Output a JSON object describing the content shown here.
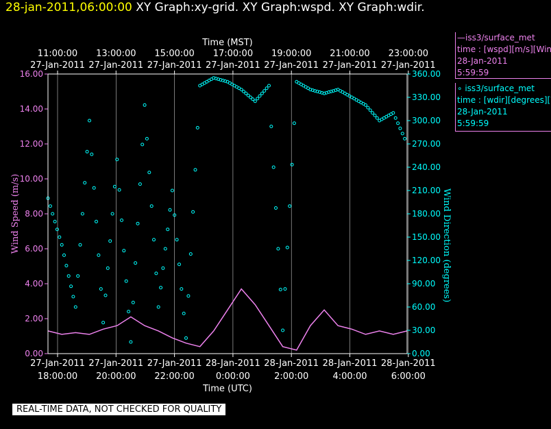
{
  "header": {
    "timestamp": "28-jan-2011,06:00:00",
    "graph_titles": "XY Graph:xy-grid.  XY Graph:wspd.  XY Graph:wdir."
  },
  "legend": {
    "wspd": {
      "name": "—iss3/surface_met",
      "var": "time : [wspd][m/s][Wind",
      "date": "28-Jan-2011",
      "time": "5:59:59",
      "color": "#ee82ee"
    },
    "wdir": {
      "name": "∘ iss3/surface_met",
      "var": "time : [wdir][degrees][W",
      "date": "28-Jan-2011",
      "time": "5:59:59",
      "color": "#00ffff"
    }
  },
  "notice": "REAL-TIME DATA, NOT CHECKED FOR QUALITY",
  "chart_data": {
    "type": "line",
    "top_axis_title": "Time (MST)",
    "bottom_axis_title": "Time (UTC)",
    "top_ticks": [
      {
        "time": "11:00:00",
        "date": "27-Jan-2011"
      },
      {
        "time": "13:00:00",
        "date": "27-Jan-2011"
      },
      {
        "time": "15:00:00",
        "date": "27-Jan-2011"
      },
      {
        "time": "17:00:00",
        "date": "27-Jan-2011"
      },
      {
        "time": "19:00:00",
        "date": "27-Jan-2011"
      },
      {
        "time": "21:00:00",
        "date": "27-Jan-2011"
      },
      {
        "time": "23:00:00",
        "date": "27-Jan-2011"
      }
    ],
    "bottom_ticks": [
      {
        "date": "27-Jan-2011",
        "time": "18:00:00"
      },
      {
        "date": "27-Jan-2011",
        "time": "20:00:00"
      },
      {
        "date": "27-Jan-2011",
        "time": "22:00:00"
      },
      {
        "date": "28-Jan-2011",
        "time": "0:00:00"
      },
      {
        "date": "28-Jan-2011",
        "time": "2:00:00"
      },
      {
        "date": "28-Jan-2011",
        "time": "4:00:00"
      },
      {
        "date": "28-Jan-2011",
        "time": "6:00:00"
      }
    ],
    "left_axis": {
      "label": "Wind Speed (m/s)",
      "ticks": [
        "0.00",
        "2.00",
        "4.00",
        "6.00",
        "8.00",
        "10.00",
        "12.00",
        "14.00",
        "16.00"
      ],
      "ylim": [
        0,
        16
      ],
      "color": "#ee82ee"
    },
    "right_axis": {
      "label": "Wind Direction (degrees)",
      "ticks": [
        "0.00",
        "30.00",
        "60.00",
        "90.00",
        "120.00",
        "150.00",
        "180.00",
        "210.00",
        "240.00",
        "270.00",
        "300.00",
        "330.00",
        "360.00"
      ],
      "ylim": [
        0,
        360
      ],
      "color": "#00ffff"
    },
    "grid": true,
    "xlim_hours_utc": [
      17.0,
      30.0
    ],
    "series": [
      {
        "name": "iss3/surface_met time : [wspd][m/s]",
        "axis": "left",
        "style": "line",
        "color": "#ee82ee",
        "x": [
          17.0,
          17.5,
          18.0,
          18.5,
          19.0,
          19.5,
          20.0,
          20.5,
          21.0,
          21.5,
          22.0,
          22.5,
          23.0,
          23.5,
          24.0,
          24.5,
          25.0,
          25.5,
          26.0,
          26.5,
          27.0,
          27.5,
          28.0,
          28.5,
          29.0,
          29.5,
          30.0
        ],
        "y": [
          1.3,
          1.1,
          1.2,
          1.1,
          1.4,
          1.6,
          2.1,
          1.6,
          1.3,
          0.9,
          0.6,
          0.4,
          1.3,
          2.5,
          3.7,
          2.8,
          1.6,
          0.4,
          0.2,
          1.6,
          2.5,
          1.6,
          1.4,
          1.1,
          1.3,
          1.1,
          1.3
        ]
      },
      {
        "name": "iss3/surface_met time : [wdir][degrees]",
        "axis": "right",
        "style": "scatter",
        "color": "#00ffff",
        "x": [
          17.0,
          17.5,
          18.0,
          18.5,
          19.0,
          19.5,
          20.0,
          20.5,
          21.0,
          21.5,
          22.0,
          22.5,
          23.0,
          23.5,
          24.0,
          24.5,
          25.0,
          25.5,
          26.0,
          26.5,
          27.0,
          27.5,
          28.0,
          28.5,
          29.0,
          29.5,
          30.0
        ],
        "y": [
          200,
          140,
          60,
          300,
          40,
          250,
          15,
          320,
          60,
          210,
          20,
          345,
          355,
          350,
          340,
          325,
          345,
          30,
          350,
          340,
          335,
          340,
          330,
          320,
          300,
          310,
          270
        ]
      }
    ]
  }
}
